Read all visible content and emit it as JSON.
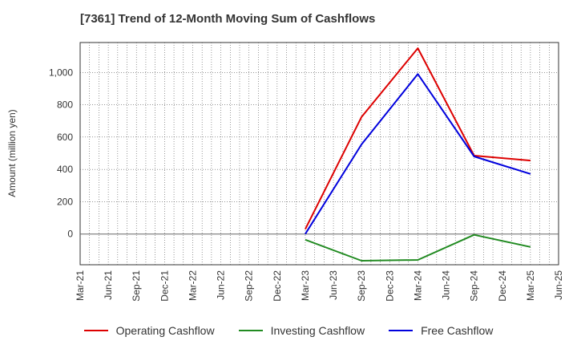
{
  "chart_data": {
    "type": "line",
    "title": "[7361]  Trend of 12-Month Moving Sum of Cashflows",
    "xlabel": "",
    "ylabel": "Amount (million yen)",
    "x_tick_labels": [
      "Mar-21",
      "Jun-21",
      "Sep-21",
      "Dec-21",
      "Mar-22",
      "Jun-22",
      "Sep-22",
      "Dec-22",
      "Mar-23",
      "Jun-23",
      "Sep-23",
      "Dec-23",
      "Mar-24",
      "Jun-24",
      "Sep-24",
      "Dec-24",
      "Mar-25",
      "Jun-25"
    ],
    "y_tick_labels": [
      "0",
      "200",
      "400",
      "600",
      "800",
      "1,000"
    ],
    "y_ticks": [
      0,
      200,
      400,
      600,
      800,
      1000
    ],
    "ylim": [
      -190,
      1185
    ],
    "grid": true,
    "legend_position": "bottom",
    "series": [
      {
        "name": "Operating Cashflow",
        "color": "#dd0000",
        "x": [
          "Mar-23",
          "Sep-23",
          "Mar-24",
          "Sep-24",
          "Mar-25"
        ],
        "values": [
          30,
          725,
          1150,
          485,
          455
        ]
      },
      {
        "name": "Investing Cashflow",
        "color": "#228B22",
        "x": [
          "Mar-23",
          "Sep-23",
          "Mar-24",
          "Sep-24",
          "Mar-25"
        ],
        "values": [
          -35,
          -165,
          -160,
          -5,
          -80
        ]
      },
      {
        "name": "Free Cashflow",
        "color": "#0000dd",
        "x": [
          "Mar-23",
          "Sep-23",
          "Mar-24",
          "Sep-24",
          "Mar-25"
        ],
        "values": [
          0,
          555,
          990,
          480,
          372
        ]
      }
    ]
  }
}
